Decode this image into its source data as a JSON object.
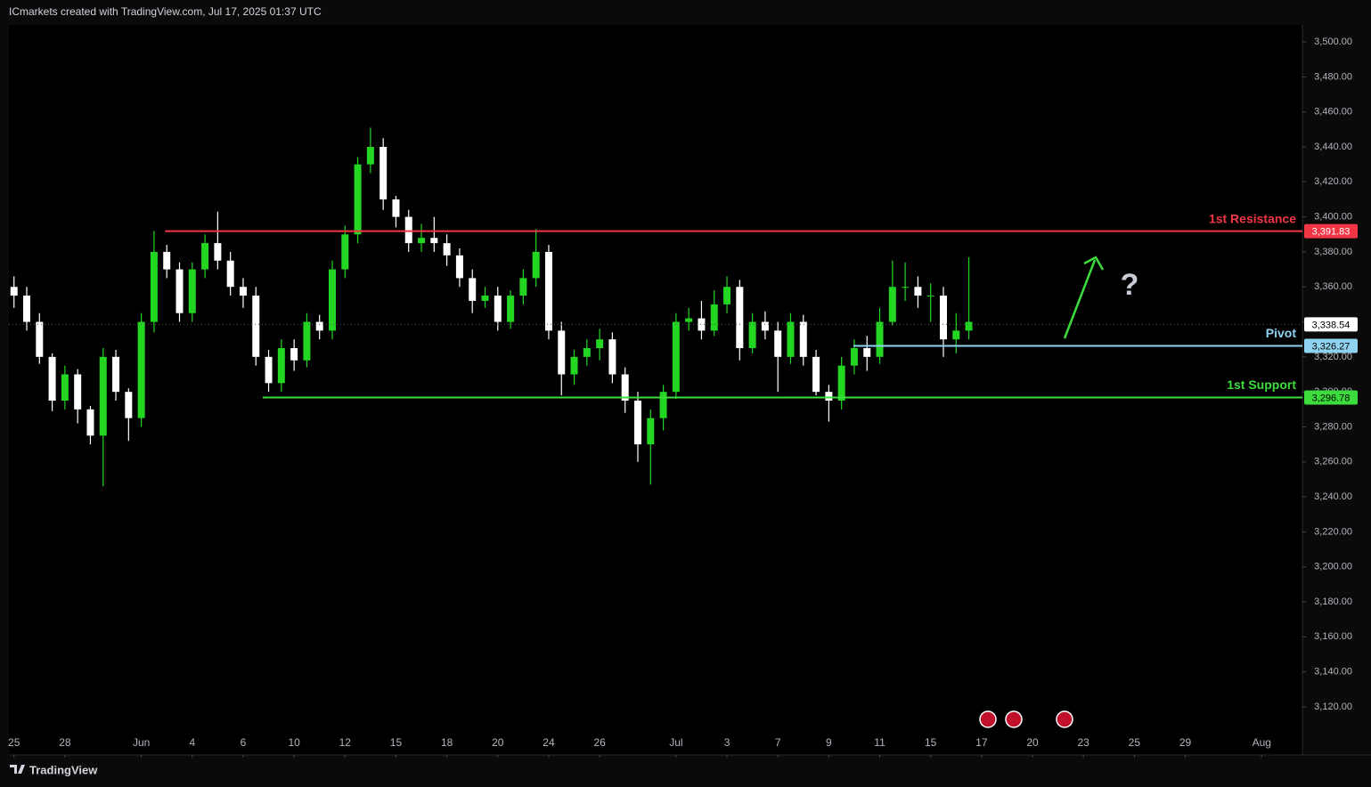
{
  "header": "ICmarkets created with TradingView.com, Jul 17, 2025 01:37 UTC",
  "footer": "TradingView",
  "chart_data": {
    "type": "candlestick",
    "up_color": "#22d622",
    "down_color": "#ffffff",
    "x": [
      0,
      0.5,
      1,
      1.5,
      2,
      2.5,
      3,
      3.5,
      4,
      4.5,
      5,
      5.5,
      6,
      6.5,
      7,
      7.5,
      8,
      8.5,
      9,
      9.5,
      10,
      10.5,
      11,
      11.5,
      12,
      12.5,
      13,
      13.5,
      14,
      14.5,
      15,
      15.5,
      16,
      16.5,
      17,
      17.5,
      18,
      18.5,
      19,
      19.5,
      20,
      20.5,
      21,
      21.5,
      22,
      22.5,
      23,
      23.5,
      24,
      24.5,
      25,
      25.5,
      26,
      26.5,
      27,
      27.5,
      28,
      28.5,
      29,
      29.5,
      30,
      30.5,
      31,
      31.5,
      32,
      32.5,
      33,
      33.5,
      34,
      34.5,
      35,
      35.5,
      36,
      36.5,
      37,
      37.5
    ],
    "open": [
      3360,
      3355,
      3340,
      3320,
      3295,
      3310,
      3290,
      3275,
      3320,
      3300,
      3285,
      3340,
      3380,
      3370,
      3345,
      3370,
      3385,
      3375,
      3360,
      3355,
      3320,
      3305,
      3325,
      3318,
      3340,
      3335,
      3370,
      3390,
      3430,
      3440,
      3410,
      3400,
      3385,
      3388,
      3385,
      3378,
      3365,
      3352,
      3355,
      3340,
      3355,
      3365,
      3380,
      3335,
      3310,
      3320,
      3325,
      3330,
      3310,
      3295,
      3270,
      3285,
      3300,
      3340,
      3342,
      3335,
      3350,
      3360,
      3325,
      3340,
      3335,
      3320,
      3340,
      3320,
      3300,
      3295,
      3315,
      3325,
      3320,
      3340,
      3360,
      3360,
      3355,
      3355,
      3330,
      3335
    ],
    "high": [
      3366,
      3360,
      3345,
      3322,
      3315,
      3313,
      3292,
      3325,
      3324,
      3302,
      3345,
      3392,
      3384,
      3374,
      3374,
      3390,
      3403,
      3380,
      3365,
      3360,
      3324,
      3330,
      3330,
      3345,
      3344,
      3375,
      3395,
      3434,
      3451,
      3445,
      3412,
      3404,
      3396,
      3400,
      3390,
      3382,
      3370,
      3360,
      3360,
      3358,
      3370,
      3393,
      3384,
      3340,
      3324,
      3330,
      3336,
      3334,
      3314,
      3300,
      3290,
      3304,
      3345,
      3348,
      3352,
      3358,
      3366,
      3364,
      3345,
      3346,
      3340,
      3345,
      3344,
      3324,
      3304,
      3320,
      3330,
      3332,
      3348,
      3375,
      3374,
      3366,
      3362,
      3360,
      3345,
      3377
    ],
    "low": [
      3348,
      3335,
      3316,
      3289,
      3290,
      3282,
      3270,
      3246,
      3295,
      3272,
      3280,
      3334,
      3365,
      3340,
      3340,
      3365,
      3370,
      3355,
      3348,
      3315,
      3300,
      3300,
      3312,
      3314,
      3330,
      3330,
      3365,
      3385,
      3425,
      3404,
      3394,
      3380,
      3380,
      3380,
      3372,
      3360,
      3345,
      3348,
      3335,
      3336,
      3350,
      3360,
      3330,
      3298,
      3304,
      3315,
      3318,
      3305,
      3288,
      3260,
      3247,
      3278,
      3296,
      3335,
      3330,
      3332,
      3345,
      3318,
      3322,
      3330,
      3300,
      3316,
      3315,
      3298,
      3283,
      3290,
      3310,
      3312,
      3316,
      3338,
      3352,
      3348,
      3340,
      3320,
      3322,
      3330
    ],
    "close": [
      3355,
      3340,
      3320,
      3295,
      3310,
      3290,
      3275,
      3320,
      3300,
      3285,
      3340,
      3380,
      3370,
      3345,
      3370,
      3385,
      3375,
      3360,
      3355,
      3320,
      3305,
      3325,
      3318,
      3340,
      3335,
      3370,
      3390,
      3430,
      3440,
      3410,
      3400,
      3385,
      3388,
      3385,
      3378,
      3365,
      3352,
      3355,
      3340,
      3355,
      3365,
      3380,
      3335,
      3310,
      3320,
      3325,
      3330,
      3310,
      3295,
      3270,
      3285,
      3300,
      3340,
      3342,
      3335,
      3350,
      3360,
      3325,
      3340,
      3335,
      3320,
      3340,
      3320,
      3300,
      3295,
      3315,
      3325,
      3320,
      3340,
      3360,
      3360,
      3355,
      3355,
      3330,
      3335,
      3340
    ],
    "xlim": [
      -0.2,
      50.6
    ],
    "ylim": [
      3092.5,
      3509.7
    ],
    "xticks": [
      {
        "value": 0,
        "label": "25"
      },
      {
        "value": 2,
        "label": "28"
      },
      {
        "value": 5,
        "label": "Jun"
      },
      {
        "value": 7,
        "label": "4"
      },
      {
        "value": 9,
        "label": "6"
      },
      {
        "value": 11,
        "label": "10"
      },
      {
        "value": 13,
        "label": "12"
      },
      {
        "value": 15,
        "label": "15"
      },
      {
        "value": 17,
        "label": "18"
      },
      {
        "value": 19,
        "label": "20"
      },
      {
        "value": 21,
        "label": "24"
      },
      {
        "value": 23,
        "label": "26"
      },
      {
        "value": 26,
        "label": "Jul"
      },
      {
        "value": 28,
        "label": "3"
      },
      {
        "value": 30,
        "label": "7"
      },
      {
        "value": 32,
        "label": "9"
      },
      {
        "value": 34,
        "label": "11"
      },
      {
        "value": 36,
        "label": "15"
      },
      {
        "value": 38,
        "label": "17"
      },
      {
        "value": 40,
        "label": "20"
      },
      {
        "value": 42,
        "label": "23"
      },
      {
        "value": 44,
        "label": "25"
      },
      {
        "value": 46,
        "label": "29"
      },
      {
        "value": 49,
        "label": "Aug"
      }
    ],
    "yticks": [
      {
        "value": 3120,
        "label": "3,120.00"
      },
      {
        "value": 3140,
        "label": "3,140.00"
      },
      {
        "value": 3160,
        "label": "3,160.00"
      },
      {
        "value": 3180,
        "label": "3,180.00"
      },
      {
        "value": 3200,
        "label": "3,200.00"
      },
      {
        "value": 3220,
        "label": "3,220.00"
      },
      {
        "value": 3240,
        "label": "3,240.00"
      },
      {
        "value": 3260,
        "label": "3,260.00"
      },
      {
        "value": 3280,
        "label": "3,280.00"
      },
      {
        "value": 3300,
        "label": "3,300.00"
      },
      {
        "value": 3320,
        "label": "3,320.00"
      },
      {
        "value": 3340,
        "label": "3,340.00"
      },
      {
        "value": 3360,
        "label": "3,360.00"
      },
      {
        "value": 3380,
        "label": "3,380.00"
      },
      {
        "value": 3400,
        "label": "3,400.00"
      },
      {
        "value": 3420,
        "label": "3,420.00"
      },
      {
        "value": 3440,
        "label": "3,440.00"
      },
      {
        "value": 3460,
        "label": "3,460.00"
      },
      {
        "value": 3480,
        "label": "3,480.00"
      },
      {
        "value": 3500,
        "label": "3,500.00"
      }
    ],
    "levels": [
      {
        "name": "1st Resistance",
        "value": 3391.83,
        "label": "3,391.83",
        "color": "#f23645",
        "start_x": 5.93
      },
      {
        "name": "Pivot",
        "value": 3326.27,
        "label": "3,326.27",
        "color": "#8fd3f0",
        "start_x": 32.97
      },
      {
        "name": "1st Support",
        "value": 3296.78,
        "label": "3,296.78",
        "color": "#3ddc3d",
        "start_x": 9.77
      }
    ],
    "last_price": {
      "value": 3338.54,
      "label": "3,338.54"
    }
  }
}
